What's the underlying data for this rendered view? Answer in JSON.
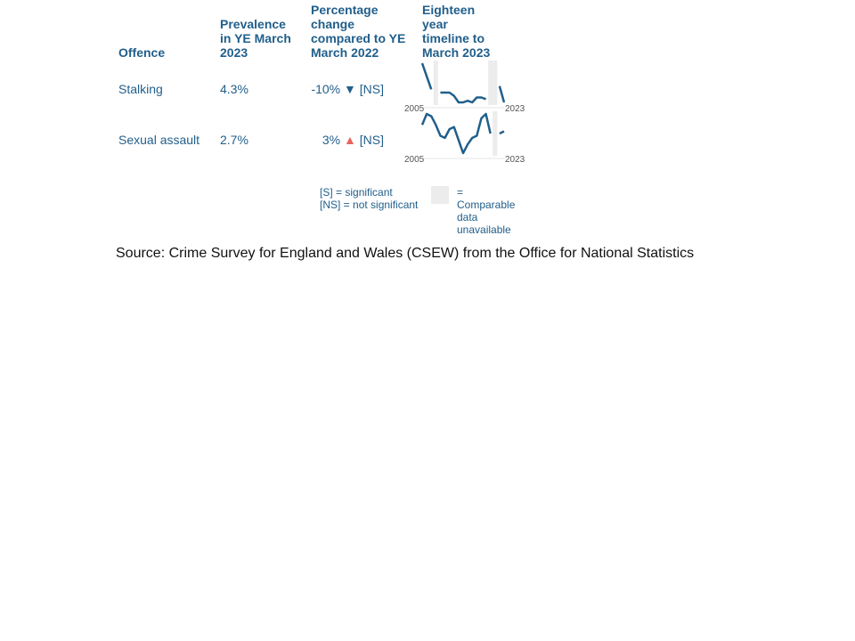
{
  "headers": {
    "offence": "Offence",
    "prevalence": "Prevalence in YE March 2023",
    "change": "Percentage change compared to YE March 2022",
    "timeline": "Eighteen year timeline to March 2023"
  },
  "rows": [
    {
      "offence": "Stalking",
      "prevalence": "4.3%",
      "change": "-10%",
      "arrow": "▼",
      "significance": "[NS]"
    },
    {
      "offence": "Sexual assault",
      "prevalence": "2.7%",
      "change": "3%",
      "arrow": "▲",
      "significance": "[NS]"
    }
  ],
  "colors": {
    "line": "#215f8b",
    "gap": "#ececec",
    "up": "#e8625f",
    "down": "#215f8b"
  },
  "chart_data": [
    {
      "type": "line",
      "title": "Stalking",
      "x_start_label": "2005",
      "x_end_label": "2023",
      "x": [
        2005,
        2006,
        2007,
        2008,
        2009,
        2010,
        2011,
        2012,
        2013,
        2014,
        2015,
        2016,
        2017,
        2018,
        2019,
        2020,
        2021,
        2022,
        2023
      ],
      "values": [
        5.5,
        5.1,
        4.7,
        null,
        4.6,
        4.6,
        4.6,
        4.5,
        4.3,
        4.3,
        4.35,
        4.3,
        4.45,
        4.45,
        4.4,
        null,
        null,
        4.8,
        4.3
      ],
      "unavailable_years": [
        2008,
        2020,
        2021
      ]
    },
    {
      "type": "line",
      "title": "Sexual assault",
      "x_start_label": "2005",
      "x_end_label": "2023",
      "x": [
        2005,
        2006,
        2007,
        2008,
        2009,
        2010,
        2011,
        2012,
        2013,
        2014,
        2015,
        2016,
        2017,
        2018,
        2019,
        2020,
        2021,
        2022,
        2023
      ],
      "values": [
        3.0,
        3.5,
        3.4,
        3.0,
        2.5,
        2.4,
        2.8,
        2.9,
        2.3,
        1.7,
        2.1,
        2.4,
        2.5,
        3.3,
        3.5,
        2.6,
        null,
        2.6,
        2.7
      ],
      "unavailable_years": [
        2021
      ]
    }
  ],
  "legend": {
    "significant": "[S] = significant",
    "not_significant": "[NS] = not significant",
    "unavailable": "= Comparable data unavailable"
  },
  "source": "Source: Crime Survey for England and Wales (CSEW) from the Office for National Statistics"
}
